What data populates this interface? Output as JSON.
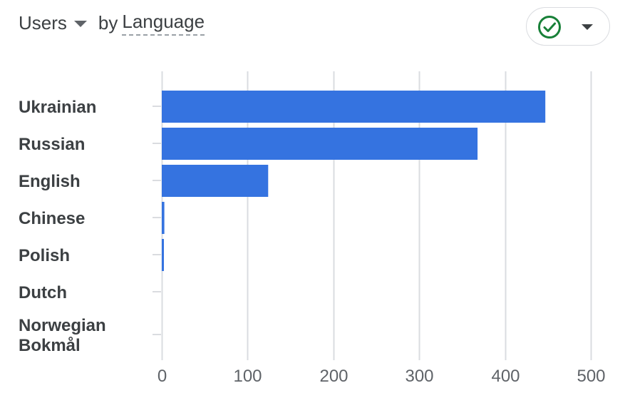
{
  "header": {
    "metric": "Users",
    "by_text": "by",
    "dimension": "Language"
  },
  "status_button": {
    "icon": "check-circle-icon",
    "icon_color": "#188038"
  },
  "colors": {
    "bar": "#3573e0",
    "grid": "#dadce0"
  },
  "chart_data": {
    "type": "bar",
    "orientation": "horizontal",
    "categories": [
      "Ukrainian",
      "Russian",
      "English",
      "Chinese",
      "Polish",
      "Dutch",
      "Norwegian Bokmål"
    ],
    "category_lines": [
      [
        "Ukrainian"
      ],
      [
        "Russian"
      ],
      [
        "English"
      ],
      [
        "Chinese"
      ],
      [
        "Polish"
      ],
      [
        "Dutch"
      ],
      [
        "Norwegian",
        "Bokmål"
      ]
    ],
    "series": [
      {
        "values": [
          447,
          368,
          124,
          3,
          1,
          0,
          0
        ]
      }
    ],
    "xlim": [
      0,
      500
    ],
    "xticks": [
      0,
      100,
      200,
      300,
      400,
      500
    ],
    "grid": true
  }
}
